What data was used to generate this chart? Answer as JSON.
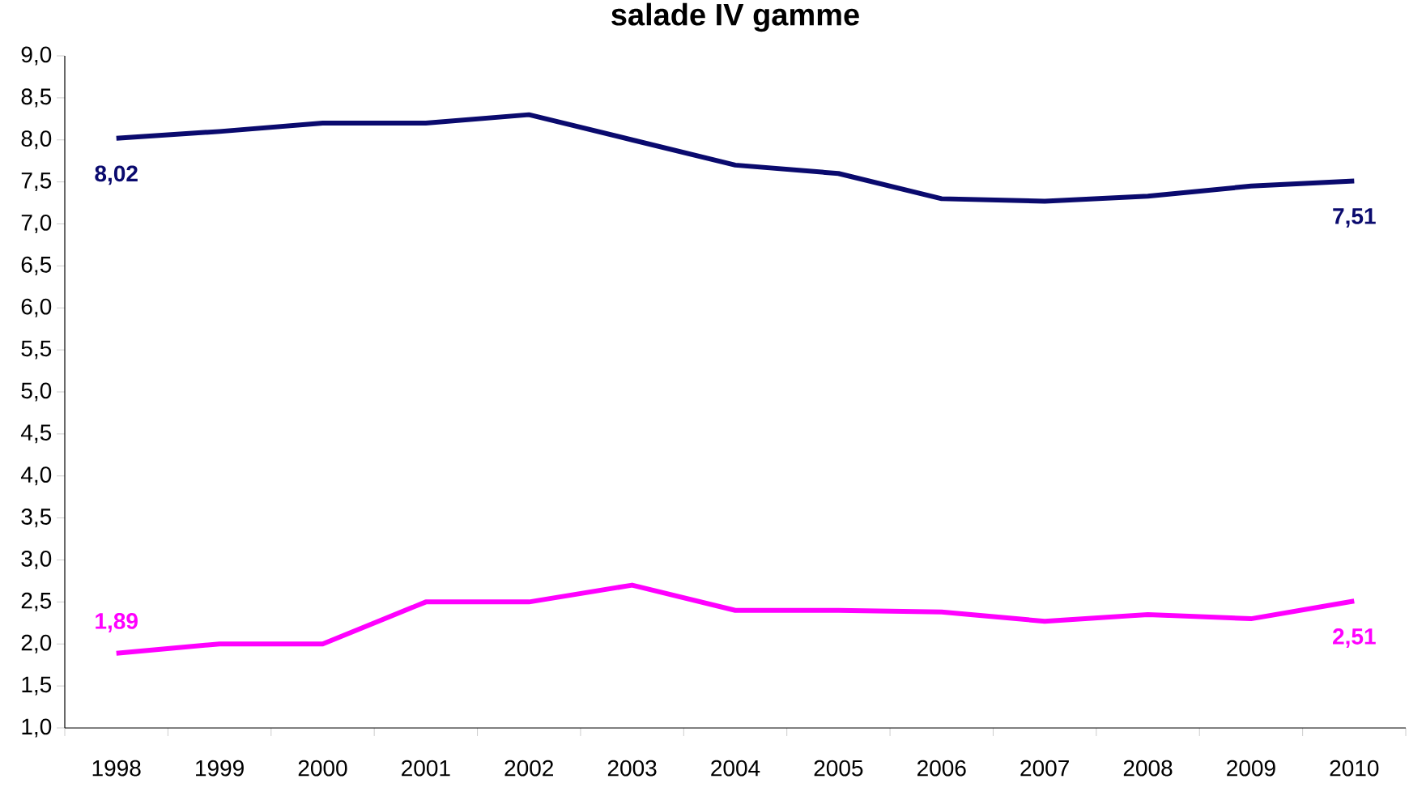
{
  "chart_data": {
    "type": "line",
    "title": "salade IV gamme",
    "categories": [
      "1998",
      "1999",
      "2000",
      "2001",
      "2002",
      "2003",
      "2004",
      "2005",
      "2006",
      "2007",
      "2008",
      "2009",
      "2010"
    ],
    "series": [
      {
        "color": "#0a0a6e",
        "values": [
          8.02,
          8.1,
          8.2,
          8.2,
          8.3,
          8.0,
          7.7,
          7.6,
          7.3,
          7.27,
          7.33,
          7.45,
          7.51
        ],
        "value_labels": [
          "8,02",
          null,
          null,
          null,
          null,
          null,
          null,
          null,
          null,
          null,
          null,
          null,
          "7,51"
        ]
      },
      {
        "color": "#ff00ff",
        "values": [
          1.89,
          2.0,
          2.0,
          2.5,
          2.5,
          2.7,
          2.4,
          2.4,
          2.38,
          2.27,
          2.35,
          2.3,
          2.51
        ],
        "value_labels": [
          "1,89",
          null,
          null,
          null,
          null,
          null,
          null,
          null,
          null,
          null,
          null,
          null,
          "2,51"
        ]
      }
    ],
    "ylim": [
      1,
      9
    ],
    "yticks": [
      {
        "value": 1,
        "label": "1,0"
      },
      {
        "value": 1.5,
        "label": "1,5"
      },
      {
        "value": 2,
        "label": "2,0"
      },
      {
        "value": 2.5,
        "label": "2,5"
      },
      {
        "value": 3,
        "label": "3,0"
      },
      {
        "value": 3.5,
        "label": "3,5"
      },
      {
        "value": 4,
        "label": "4,0"
      },
      {
        "value": 4.5,
        "label": "4,5"
      },
      {
        "value": 5,
        "label": "5,0"
      },
      {
        "value": 5.5,
        "label": "5,5"
      },
      {
        "value": 6,
        "label": "6,0"
      },
      {
        "value": 6.5,
        "label": "6,5"
      },
      {
        "value": 7,
        "label": "7,0"
      },
      {
        "value": 7.5,
        "label": "7,5"
      },
      {
        "value": 8,
        "label": "8,0"
      },
      {
        "value": 8.5,
        "label": "8,5"
      },
      {
        "value": 9,
        "label": "9,0"
      }
    ],
    "grid": false,
    "marker": "none",
    "line_style": "solid"
  }
}
